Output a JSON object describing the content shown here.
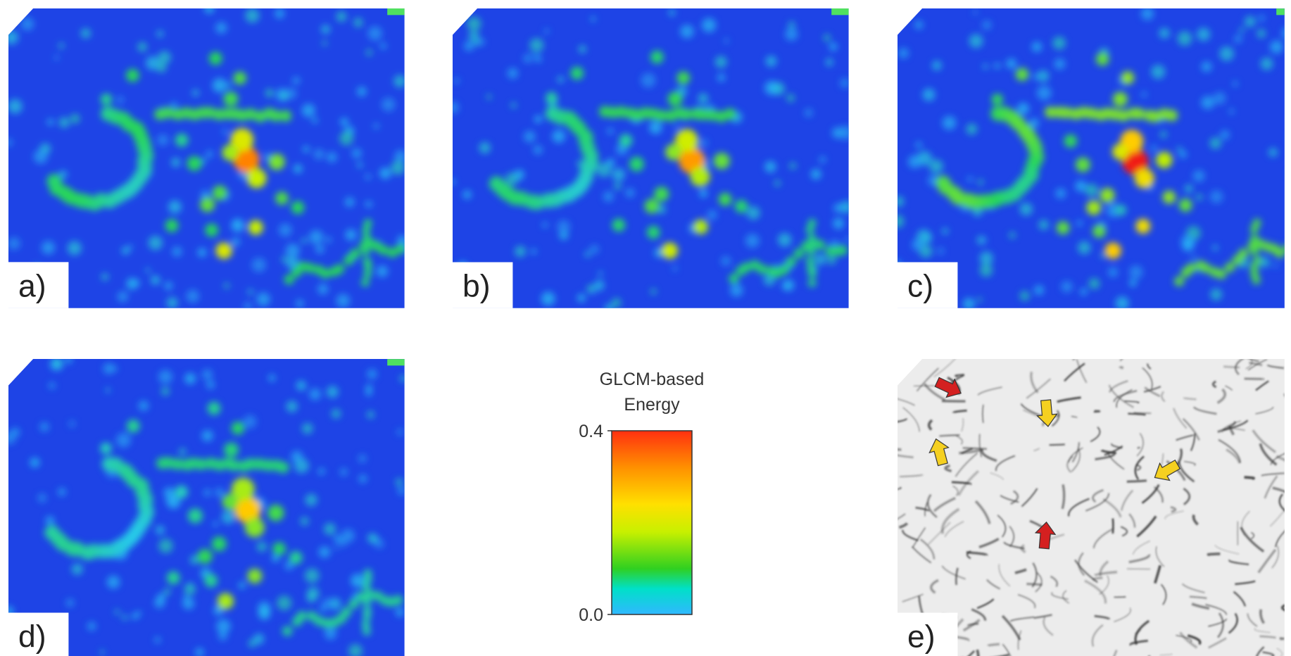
{
  "panels": [
    {
      "label": "a)"
    },
    {
      "label": "b)"
    },
    {
      "label": "c)"
    },
    {
      "label": "d)"
    },
    {
      "label": "e)"
    }
  ],
  "colorbar": {
    "title": [
      "GLCM-based",
      "Energy"
    ],
    "ticks": [
      {
        "value": 0,
        "label": "0.0"
      },
      {
        "value": 0.4,
        "label": "0.4"
      }
    ]
  }
}
